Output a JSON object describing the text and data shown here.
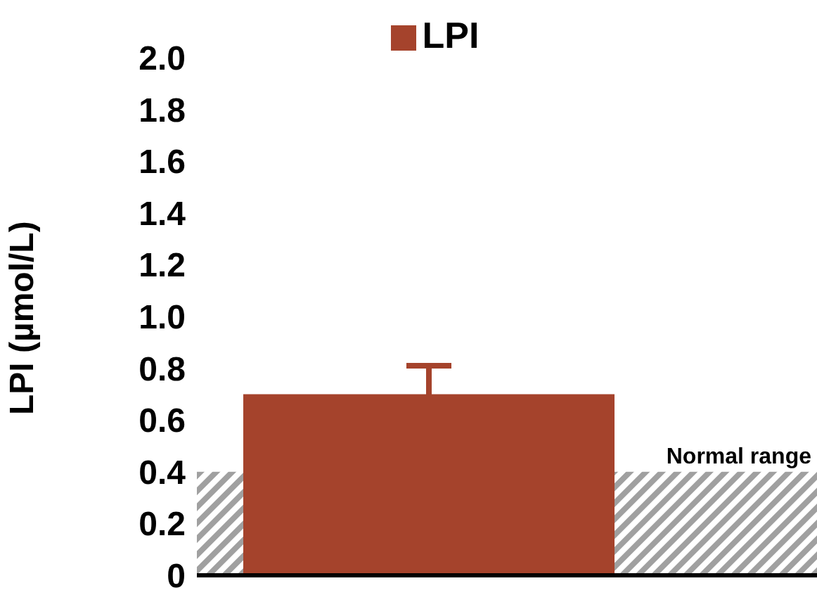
{
  "chart_data": {
    "type": "bar",
    "ylabel": "LPI (µmol/L)",
    "categories": [
      null
    ],
    "series": [
      {
        "name": "LPI",
        "color": "#a5432c",
        "values": [
          0.7
        ],
        "errors": [
          0.11
        ]
      }
    ],
    "ylim": [
      0,
      2
    ],
    "yticks": [
      0,
      0.2,
      0.4,
      0.6,
      0.8,
      {
        "value": 1,
        "label": "1.0"
      },
      1.2,
      1.4,
      1.6,
      1.8,
      {
        "value": 2,
        "label": "2.0"
      }
    ],
    "bands": [
      {
        "axis": "y",
        "from": 0,
        "to": 0.4,
        "label": "Normal range",
        "color": "#a0a0a0"
      }
    ],
    "legend": "top",
    "grid": false
  }
}
